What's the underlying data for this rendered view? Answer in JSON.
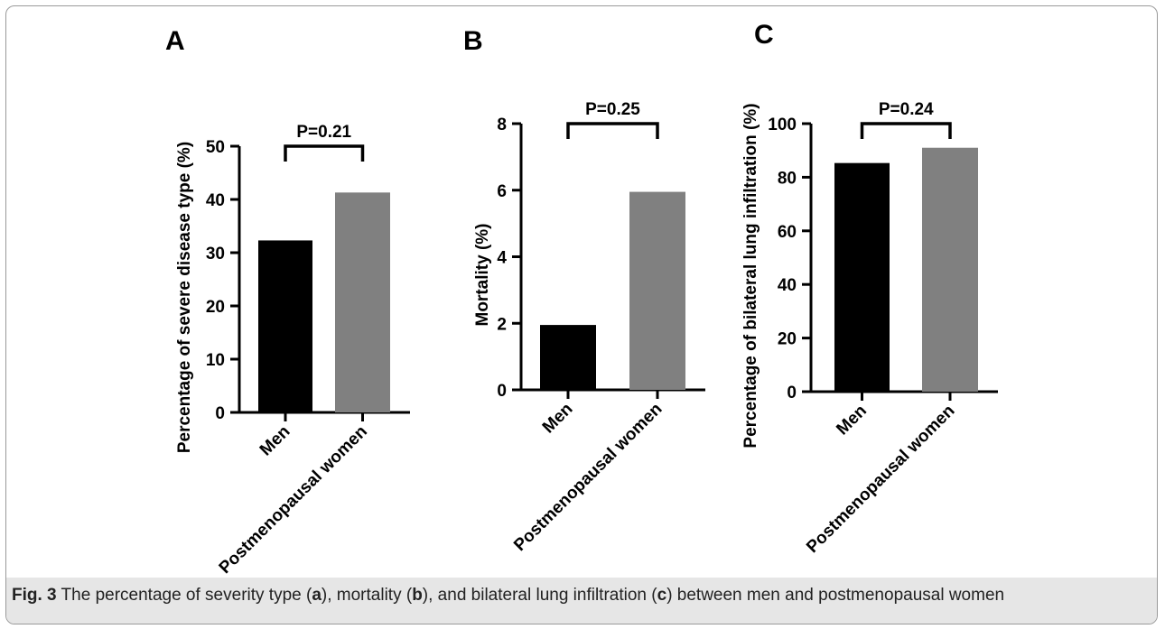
{
  "chart_data": [
    {
      "type": "bar",
      "panel": "A",
      "categories": [
        "Men",
        "Postmenopausal women"
      ],
      "values": [
        32.3,
        41.3
      ],
      "colors": [
        "#000000",
        "#808080"
      ],
      "ylabel": "Percentage of severe disease type (%)",
      "ylim": [
        0,
        50
      ],
      "yticks": [
        "0",
        "10",
        "20",
        "30",
        "40",
        "50"
      ],
      "annotation": "P=0.21",
      "grid": false
    },
    {
      "type": "bar",
      "panel": "B",
      "categories": [
        "Men",
        "Postmenopausal women"
      ],
      "values": [
        1.95,
        5.95
      ],
      "colors": [
        "#000000",
        "#808080"
      ],
      "ylabel": "Mortality (%)",
      "ylim": [
        0,
        8
      ],
      "yticks": [
        "0",
        "2",
        "4",
        "6",
        "8"
      ],
      "annotation": "P=0.25",
      "grid": false
    },
    {
      "type": "bar",
      "panel": "C",
      "categories": [
        "Men",
        "Postmenopausal women"
      ],
      "values": [
        85.3,
        91.0
      ],
      "colors": [
        "#000000",
        "#808080"
      ],
      "ylabel": "Percentage of bilateral lung infiltration (%)",
      "ylim": [
        0,
        100
      ],
      "yticks": [
        "0",
        "20",
        "40",
        "60",
        "80",
        "100"
      ],
      "annotation": "P=0.24",
      "grid": false
    }
  ],
  "caption": {
    "fig": "Fig. 3",
    "p1": " The percentage of severity type (",
    "a": "a",
    "p2": "), mortality (",
    "b": "b",
    "p3": "), and bilateral lung infiltration (",
    "c": "c",
    "p4": ") between men and postmenopausal women"
  }
}
